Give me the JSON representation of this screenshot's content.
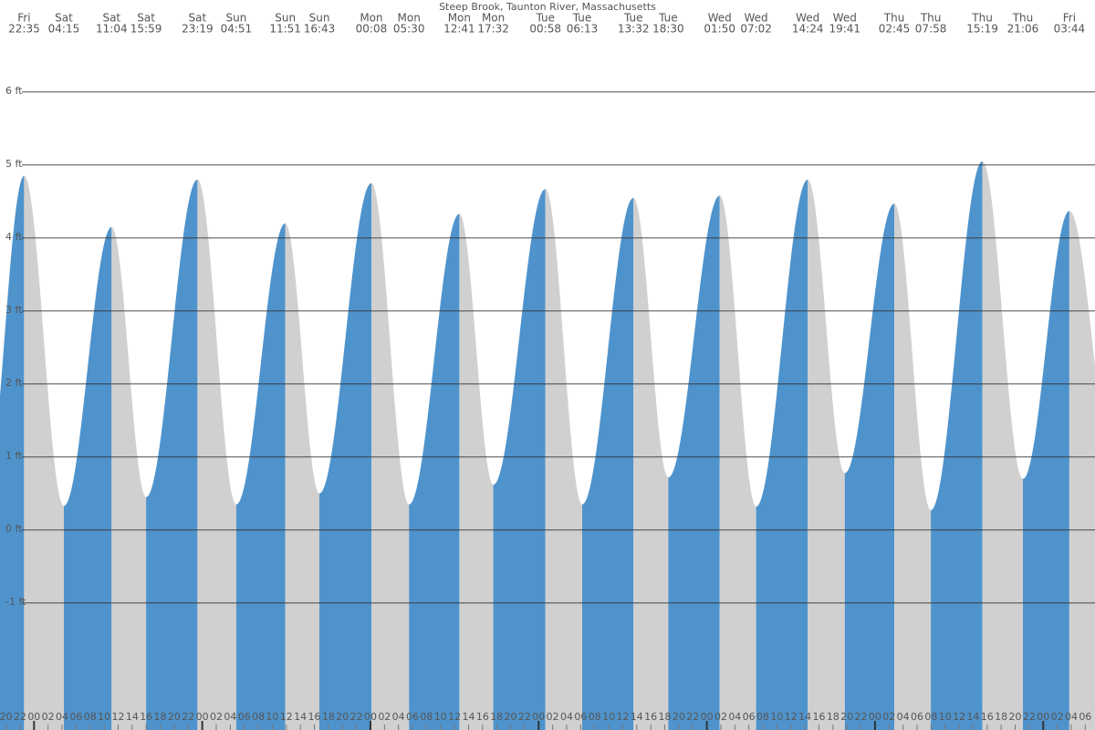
{
  "chart_data": {
    "type": "tide",
    "title": "Steep Brook, Taunton River, Massachusetts",
    "days": [
      "Fri",
      "Sat",
      "Sat",
      "Sat",
      "Sat",
      "Sun",
      "Sun",
      "Sun",
      "Mon",
      "Mon",
      "Mon",
      "Mon",
      "Tue",
      "Tue",
      "Tue",
      "Tue",
      "Wed",
      "Wed",
      "Wed",
      "Wed",
      "Thu",
      "Thu",
      "Thu",
      "Thu",
      "Fri"
    ],
    "times": [
      "22:35",
      "04:15",
      "11:04",
      "15:59",
      "23:19",
      "04:51",
      "11:51",
      "16:43",
      "00:08",
      "05:30",
      "12:41",
      "17:32",
      "00:58",
      "06:13",
      "13:32",
      "18:30",
      "01:50",
      "07:02",
      "14:24",
      "19:41",
      "02:45",
      "07:58",
      "15:19",
      "21:06",
      "03:44"
    ],
    "values": [
      4.85,
      0.33,
      4.15,
      0.45,
      4.8,
      0.35,
      4.2,
      0.5,
      4.75,
      0.35,
      4.33,
      0.62,
      4.67,
      0.35,
      4.55,
      0.72,
      4.58,
      0.32,
      4.8,
      0.78,
      4.47,
      0.27,
      5.05,
      0.7,
      4.37
    ],
    "rising_color": "#4f93cc",
    "falling_color": "#d0d0d0",
    "ylim": [
      -2.74,
      7.26
    ],
    "yticks": [
      {
        "value": 6,
        "label": "6 ft"
      },
      {
        "value": 5,
        "label": "5 ft"
      },
      {
        "value": 4,
        "label": "4 ft"
      },
      {
        "value": 3,
        "label": "3 ft"
      },
      {
        "value": 2,
        "label": "2 ft"
      },
      {
        "value": 1,
        "label": "1 ft"
      },
      {
        "value": 0,
        "label": "0 ft"
      },
      {
        "value": -1,
        "label": "-1 ft"
      }
    ],
    "hour_ticks": [
      "20",
      "22",
      "00",
      "02",
      "04",
      "06",
      "08",
      "10",
      "12",
      "14",
      "16",
      "18",
      "20",
      "22",
      "00",
      "02",
      "04",
      "06",
      "08",
      "10",
      "12",
      "14",
      "16",
      "18",
      "20",
      "22",
      "00",
      "02",
      "04",
      "06",
      "08",
      "10",
      "12",
      "14",
      "16",
      "18",
      "20",
      "22",
      "00",
      "02",
      "04",
      "06",
      "08",
      "10",
      "12",
      "14",
      "16",
      "18",
      "20",
      "22",
      "00",
      "02",
      "04",
      "06",
      "08",
      "10",
      "12",
      "14",
      "16",
      "18",
      "20",
      "22",
      "00",
      "02",
      "04",
      "06",
      "08",
      "10",
      "12",
      "14",
      "16",
      "18",
      "20",
      "22",
      "00",
      "02",
      "04",
      "06"
    ],
    "grid": true
  }
}
